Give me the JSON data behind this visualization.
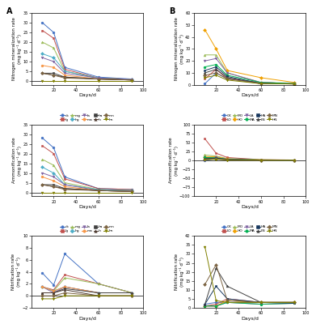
{
  "days": [
    10,
    20,
    30,
    60,
    90
  ],
  "panel_A": {
    "nitrification": {
      "ck": [
        30,
        25,
        7,
        2,
        1.0
      ],
      "lg": [
        26,
        22,
        6,
        1.5,
        0.8
      ],
      "mg": [
        20,
        17,
        5,
        1.5,
        0.8
      ],
      "hg": [
        14,
        12,
        5,
        1.5,
        0.8
      ],
      "la": [
        12,
        10,
        4,
        1.5,
        0.8
      ],
      "ma": [
        8,
        7,
        3,
        1.0,
        0.5
      ],
      "ha": [
        4,
        4,
        2,
        1.0,
        0.5
      ],
      "ln": [
        4,
        3,
        2,
        1.0,
        0.5
      ],
      "mn": [
        4,
        3,
        1.5,
        1.0,
        0.5
      ],
      "hn": [
        0,
        0,
        0,
        0,
        0
      ]
    },
    "ammonification": {
      "ck": [
        28,
        23,
        8,
        2,
        1.5
      ],
      "lg": [
        24,
        20,
        7,
        2,
        1.5
      ],
      "mg": [
        17,
        14,
        5,
        1.5,
        1.0
      ],
      "hg": [
        13,
        10,
        4,
        1.5,
        1.0
      ],
      "la": [
        10,
        8,
        4,
        1.0,
        0.8
      ],
      "ma": [
        8,
        6,
        3,
        1.0,
        0.5
      ],
      "ha": [
        4,
        4,
        2,
        1.0,
        0.5
      ],
      "ln": [
        4,
        3,
        2,
        1.0,
        0.5
      ],
      "mn": [
        4,
        3,
        1.5,
        1.0,
        0.5
      ],
      "hn": [
        0,
        0,
        0,
        0,
        0
      ]
    },
    "nitrification2": {
      "ck": [
        3.8,
        1.8,
        7.0,
        2.0,
        0.5
      ],
      "lg": [
        1.5,
        1.0,
        3.5,
        2.0,
        0.5
      ],
      "mg": [
        1.5,
        0.8,
        3.0,
        2.0,
        0.5
      ],
      "hg": [
        1.5,
        0.8,
        1.5,
        0.5,
        0.5
      ],
      "la": [
        1.5,
        0.5,
        1.5,
        0.5,
        0.5
      ],
      "ma": [
        1.5,
        0.8,
        1.5,
        0.5,
        0.5
      ],
      "ha": [
        0.5,
        0.5,
        1.2,
        0.5,
        0.5
      ],
      "ln": [
        0.5,
        0.5,
        1.0,
        0.0,
        0.0
      ],
      "mn": [
        0.0,
        0.0,
        0.5,
        0.0,
        0.0
      ],
      "hn": [
        -0.5,
        -0.5,
        0.0,
        0.0,
        0.0
      ]
    }
  },
  "panel_B": {
    "nitrification": {
      "CK": [
        1,
        10,
        5,
        2,
        1.0
      ],
      "LO": [
        5,
        13,
        5,
        2,
        1.0
      ],
      "MO": [
        25,
        25,
        10,
        2,
        1.5
      ],
      "HO": [
        46,
        30,
        12,
        6,
        2.0
      ],
      "LA": [
        20,
        22,
        10,
        2,
        1.0
      ],
      "MA": [
        15,
        17,
        8,
        2,
        1.0
      ],
      "HA": [
        12,
        15,
        7,
        1,
        0.8
      ],
      "LN": [
        10,
        13,
        6,
        1,
        0.8
      ],
      "MN": [
        8,
        10,
        5,
        1,
        0.8
      ],
      "HN": [
        6,
        8,
        4,
        1,
        0.8
      ]
    },
    "ammonification": {
      "CK": [
        0,
        5,
        3,
        1,
        0.5
      ],
      "LO": [
        60,
        20,
        8,
        2,
        1.0
      ],
      "MO": [
        15,
        12,
        5,
        2,
        0.5
      ],
      "HO": [
        10,
        10,
        4,
        1,
        0.5
      ],
      "LA": [
        8,
        8,
        3,
        1,
        0.5
      ],
      "MA": [
        8,
        7,
        3,
        1,
        0.5
      ],
      "HA": [
        5,
        6,
        3,
        1,
        0.5
      ],
      "LN": [
        5,
        5,
        2,
        1,
        0.5
      ],
      "MN": [
        3,
        4,
        2,
        0.5,
        0.5
      ],
      "HN": [
        2,
        3,
        1,
        0.5,
        0.5
      ]
    },
    "nitrification2": {
      "CK": [
        2,
        3,
        3,
        3,
        3.0
      ],
      "LO": [
        1,
        2,
        5,
        3,
        3.0
      ],
      "MO": [
        1,
        1,
        4,
        3,
        3.0
      ],
      "HO": [
        1,
        1,
        4,
        3,
        3.0
      ],
      "LA": [
        1,
        1,
        3,
        2,
        2.5
      ],
      "MA": [
        1,
        1,
        3,
        2,
        2.5
      ],
      "HA": [
        2,
        12,
        5,
        3,
        2.5
      ],
      "LN": [
        2,
        22,
        12,
        3,
        3.0
      ],
      "MN": [
        13,
        24,
        4,
        3,
        3.0
      ],
      "HN": [
        34,
        4,
        3,
        3,
        3.0
      ]
    }
  },
  "colors_A": {
    "ck": "#4472C4",
    "lg": "#C0504D",
    "mg": "#9BBB59",
    "hg": "#4BACC6",
    "la": "#8064A2",
    "ma": "#F79646",
    "ha": "#404040",
    "ln": "#4E3B30",
    "mn": "#7B6342",
    "hn": "#808000"
  },
  "colors_B": {
    "CK": "#4472C4",
    "LO": "#C0504D",
    "MO": "#9BBB59",
    "HO": "#F0A000",
    "LA": "#8064A2",
    "MA": "#00B050",
    "HA": "#17375E",
    "LN": "#404040",
    "MN": "#7B6342",
    "HN": "#808000"
  },
  "markers_A": {
    "ck": "o",
    "lg": "s",
    "mg": "^",
    "hg": "D",
    "la": "v",
    "ma": "o",
    "ha": "s",
    "ln": "^",
    "mn": "D",
    "hn": "v"
  },
  "markers_B": {
    "CK": "o",
    "LO": "s",
    "MO": "^",
    "HO": "D",
    "LA": "v",
    "MA": "o",
    "HA": "s",
    "LN": "^",
    "MN": "D",
    "HN": "v"
  },
  "ylabel_A1": "Nitrogen mineralization rate\n(mg kg⁻¹ d⁻¹)",
  "ylabel_A2": "Ammonification rate\n(mg kg⁻¹ d⁻¹)",
  "ylabel_A3": "Nitrification rate\n(mg kg⁻¹ d⁻¹)",
  "ylabel_B1": "Nitrogen mineralization rate\n(mg kg⁻¹ d⁻¹)",
  "ylabel_B2": "Ammonification rate\n(mg kg⁻¹ d⁻¹)",
  "ylabel_B3": "Nitrification rate\n(mg kg⁻¹ d⁻¹)",
  "xlabel": "Days/d",
  "ylim_A1": [
    -2,
    35
  ],
  "ylim_A2": [
    -2,
    35
  ],
  "ylim_A3": [
    -2,
    10
  ],
  "ylim_B1": [
    0,
    60
  ],
  "ylim_B2": [
    -100,
    100
  ],
  "ylim_B3": [
    0,
    40
  ],
  "legend_A_row1": [
    "ck",
    "lg",
    "mg",
    "hg",
    "la"
  ],
  "legend_A_row2": [
    "ma",
    "ha",
    "ln",
    "mn",
    "hn"
  ],
  "legend_B_row1": [
    "CK",
    "LO",
    "MO",
    "HO",
    "LA"
  ],
  "legend_B_row2": [
    "MA",
    "HA",
    "LN",
    "MN",
    "HN"
  ]
}
